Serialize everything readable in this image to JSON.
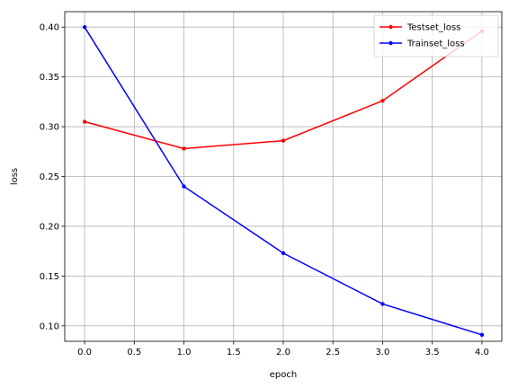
{
  "chart_data": {
    "type": "line",
    "title": "",
    "xlabel": "epoch",
    "ylabel": "loss",
    "x": [
      0,
      1,
      2,
      3,
      4
    ],
    "xlim": [
      -0.2,
      4.2
    ],
    "ylim": [
      0.0845,
      0.4155
    ],
    "xticks": [
      0.0,
      0.5,
      1.0,
      1.5,
      2.0,
      2.5,
      3.0,
      3.5,
      4.0
    ],
    "xtick_labels": [
      "0.0",
      "0.5",
      "1.0",
      "1.5",
      "2.0",
      "2.5",
      "3.0",
      "3.5",
      "4.0"
    ],
    "yticks": [
      0.1,
      0.15,
      0.2,
      0.25,
      0.3,
      0.35,
      0.4
    ],
    "ytick_labels": [
      "0.10",
      "0.15",
      "0.20",
      "0.25",
      "0.30",
      "0.35",
      "0.40"
    ],
    "grid": true,
    "legend_position": "top-right",
    "series": [
      {
        "name": "Testset_loss",
        "color": "#ff0000",
        "marker": "dot",
        "values": [
          0.305,
          0.278,
          0.286,
          0.326,
          0.396
        ]
      },
      {
        "name": "Trainset_loss",
        "color": "#0000ff",
        "marker": "dot",
        "values": [
          0.4,
          0.24,
          0.173,
          0.122,
          0.091
        ]
      }
    ]
  }
}
